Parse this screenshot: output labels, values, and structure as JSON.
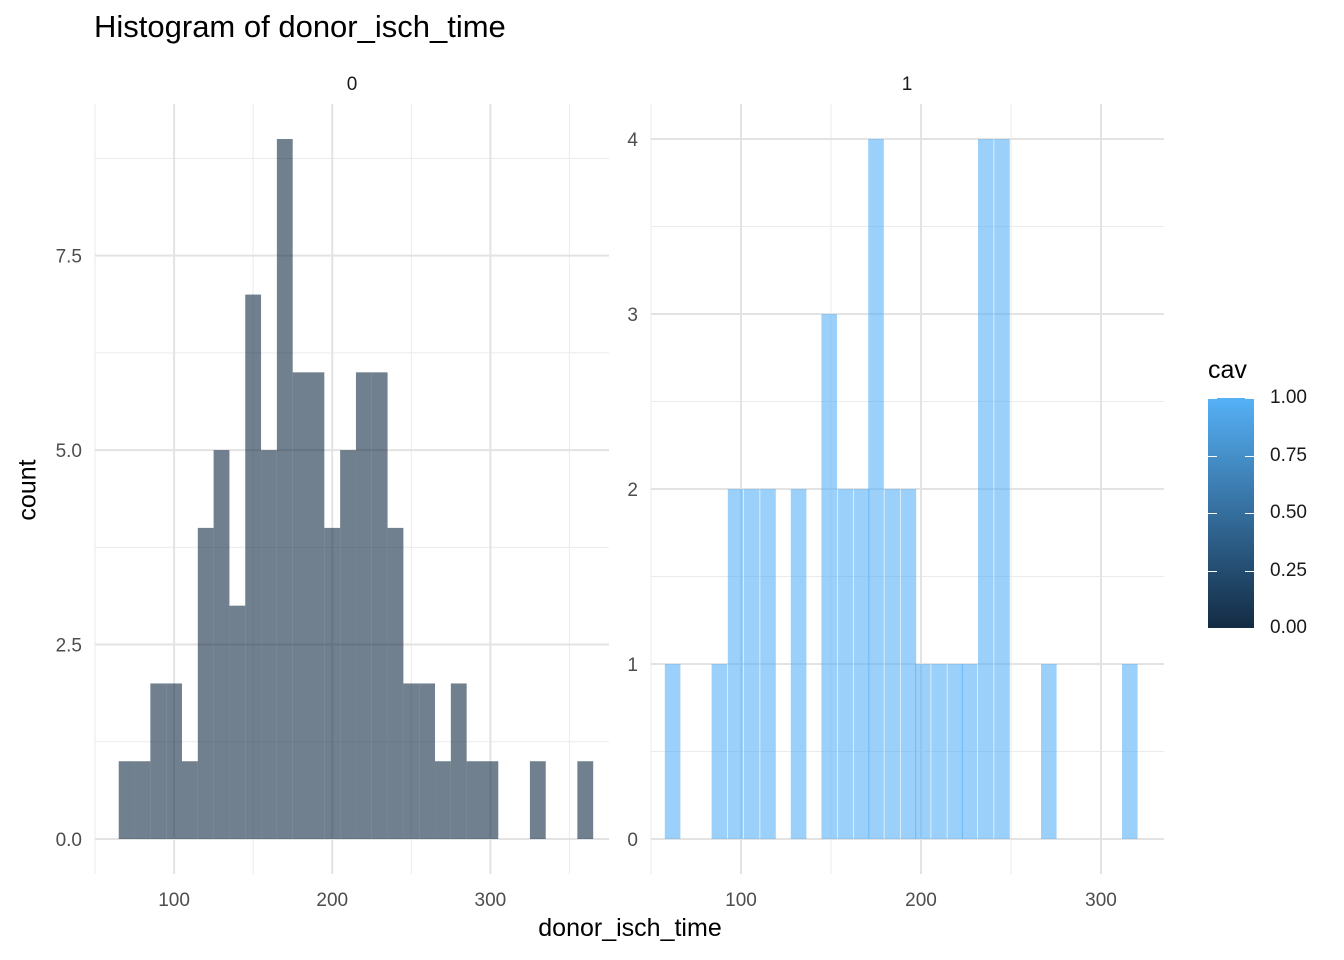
{
  "chart_data": {
    "type": "bar",
    "title": "Histogram of donor_isch_time",
    "xlabel": "donor_isch_time",
    "ylabel": "count",
    "grid": true,
    "bin_width": 10,
    "panels": [
      {
        "name": "0",
        "xlim": [
          50,
          375
        ],
        "ylim": [
          -0.45,
          9.45
        ],
        "xticks": [
          100,
          200,
          300
        ],
        "yticks": [
          0.0,
          2.5,
          5.0,
          7.5
        ],
        "ytick_labels": [
          "0.0",
          "2.5",
          "5.0",
          "7.5"
        ],
        "fill": "#132B43",
        "bins": [
          {
            "x": 70,
            "count": 1
          },
          {
            "x": 80,
            "count": 1
          },
          {
            "x": 90,
            "count": 2
          },
          {
            "x": 100,
            "count": 2
          },
          {
            "x": 110,
            "count": 1
          },
          {
            "x": 120,
            "count": 4
          },
          {
            "x": 130,
            "count": 5
          },
          {
            "x": 140,
            "count": 3
          },
          {
            "x": 150,
            "count": 7
          },
          {
            "x": 160,
            "count": 5
          },
          {
            "x": 170,
            "count": 9
          },
          {
            "x": 180,
            "count": 6
          },
          {
            "x": 190,
            "count": 6
          },
          {
            "x": 200,
            "count": 4
          },
          {
            "x": 210,
            "count": 5
          },
          {
            "x": 220,
            "count": 6
          },
          {
            "x": 230,
            "count": 6
          },
          {
            "x": 240,
            "count": 4
          },
          {
            "x": 250,
            "count": 2
          },
          {
            "x": 260,
            "count": 2
          },
          {
            "x": 270,
            "count": 1
          },
          {
            "x": 280,
            "count": 2
          },
          {
            "x": 290,
            "count": 1
          },
          {
            "x": 300,
            "count": 1
          },
          {
            "x": 310,
            "count": 0
          },
          {
            "x": 320,
            "count": 0
          },
          {
            "x": 330,
            "count": 1
          },
          {
            "x": 340,
            "count": 0
          },
          {
            "x": 350,
            "count": 0
          },
          {
            "x": 360,
            "count": 1
          }
        ]
      },
      {
        "name": "1",
        "xlim": [
          50,
          335
        ],
        "ylim": [
          -0.2,
          4.2
        ],
        "xticks": [
          100,
          200,
          300
        ],
        "yticks": [
          0,
          1,
          2,
          3,
          4
        ],
        "ytick_labels": [
          "0",
          "1",
          "2",
          "3",
          "4"
        ],
        "fill": "#56B1F7",
        "bins": [
          {
            "x": 62,
            "count": 1
          },
          {
            "x": 88,
            "count": 1
          },
          {
            "x": 97,
            "count": 2
          },
          {
            "x": 106,
            "count": 2
          },
          {
            "x": 115,
            "count": 2
          },
          {
            "x": 132,
            "count": 2
          },
          {
            "x": 149,
            "count": 3
          },
          {
            "x": 158,
            "count": 2
          },
          {
            "x": 167,
            "count": 2
          },
          {
            "x": 175,
            "count": 4
          },
          {
            "x": 184,
            "count": 2
          },
          {
            "x": 193,
            "count": 2
          },
          {
            "x": 201,
            "count": 1
          },
          {
            "x": 210,
            "count": 1
          },
          {
            "x": 219,
            "count": 1
          },
          {
            "x": 227,
            "count": 1
          },
          {
            "x": 236,
            "count": 4
          },
          {
            "x": 245,
            "count": 4
          },
          {
            "x": 271,
            "count": 1
          },
          {
            "x": 316,
            "count": 1
          }
        ],
        "bin_width": 8.65
      }
    ],
    "legend": {
      "title": "cav",
      "placement": "right",
      "type": "colorbar",
      "low_color": "#132B43",
      "high_color": "#56B1F7",
      "range": [
        0,
        1
      ],
      "labels": [
        "1.00",
        "0.75",
        "0.50",
        "0.25",
        "0.00"
      ],
      "values": [
        1.0,
        0.75,
        0.5,
        0.25,
        0.0
      ]
    }
  }
}
